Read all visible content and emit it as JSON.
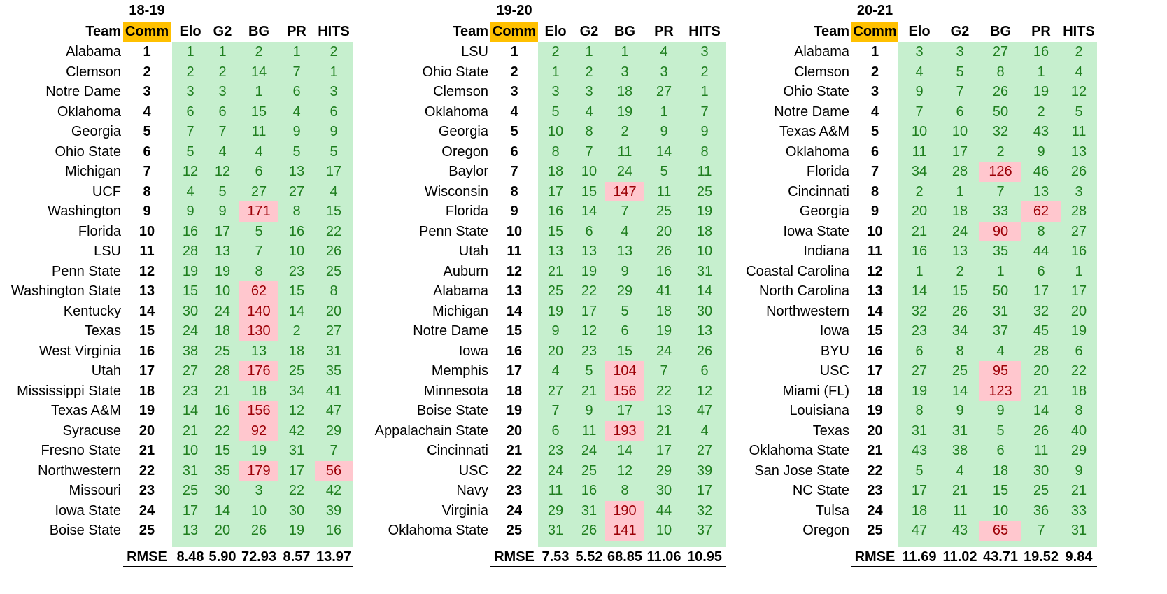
{
  "headers": {
    "team": "Team",
    "comm": "Comm",
    "elo": "Elo",
    "g2": "G2",
    "bg": "BG",
    "pr": "PR",
    "hits": "HITS",
    "rmse": "RMSE"
  },
  "colors": {
    "comm_header": "#ffc000",
    "green_fill": "#c6efce",
    "green_text": "#1e7e1e",
    "red_fill": "#ffc7ce",
    "red_text": "#9c0006"
  },
  "seasons": [
    {
      "label": "18-19",
      "rows": [
        {
          "team": "Alabama",
          "comm": "1",
          "elo": "1",
          "g2": "1",
          "bg": "2",
          "pr": "1",
          "hits": "2"
        },
        {
          "team": "Clemson",
          "comm": "2",
          "elo": "2",
          "g2": "2",
          "bg": "14",
          "pr": "7",
          "hits": "1"
        },
        {
          "team": "Notre Dame",
          "comm": "3",
          "elo": "3",
          "g2": "3",
          "bg": "1",
          "pr": "6",
          "hits": "3"
        },
        {
          "team": "Oklahoma",
          "comm": "4",
          "elo": "6",
          "g2": "6",
          "bg": "15",
          "pr": "4",
          "hits": "6"
        },
        {
          "team": "Georgia",
          "comm": "5",
          "elo": "7",
          "g2": "7",
          "bg": "11",
          "pr": "9",
          "hits": "9"
        },
        {
          "team": "Ohio State",
          "comm": "6",
          "elo": "5",
          "g2": "4",
          "bg": "4",
          "pr": "5",
          "hits": "5"
        },
        {
          "team": "Michigan",
          "comm": "7",
          "elo": "12",
          "g2": "12",
          "bg": "6",
          "pr": "13",
          "hits": "17"
        },
        {
          "team": "UCF",
          "comm": "8",
          "elo": "4",
          "g2": "5",
          "bg": "27",
          "pr": "27",
          "hits": "4"
        },
        {
          "team": "Washington",
          "comm": "9",
          "elo": "9",
          "g2": "9",
          "bg": "171",
          "pr": "8",
          "hits": "15",
          "red": [
            "bg"
          ]
        },
        {
          "team": "Florida",
          "comm": "10",
          "elo": "16",
          "g2": "17",
          "bg": "5",
          "pr": "16",
          "hits": "22"
        },
        {
          "team": "LSU",
          "comm": "11",
          "elo": "28",
          "g2": "13",
          "bg": "7",
          "pr": "10",
          "hits": "26"
        },
        {
          "team": "Penn State",
          "comm": "12",
          "elo": "19",
          "g2": "19",
          "bg": "8",
          "pr": "23",
          "hits": "25"
        },
        {
          "team": "Washington State",
          "comm": "13",
          "elo": "15",
          "g2": "10",
          "bg": "62",
          "pr": "15",
          "hits": "8",
          "red": [
            "bg"
          ]
        },
        {
          "team": "Kentucky",
          "comm": "14",
          "elo": "30",
          "g2": "24",
          "bg": "140",
          "pr": "14",
          "hits": "20",
          "red": [
            "bg"
          ]
        },
        {
          "team": "Texas",
          "comm": "15",
          "elo": "24",
          "g2": "18",
          "bg": "130",
          "pr": "2",
          "hits": "27",
          "red": [
            "bg"
          ]
        },
        {
          "team": "West Virginia",
          "comm": "16",
          "elo": "38",
          "g2": "25",
          "bg": "13",
          "pr": "18",
          "hits": "31"
        },
        {
          "team": "Utah",
          "comm": "17",
          "elo": "27",
          "g2": "28",
          "bg": "176",
          "pr": "25",
          "hits": "35",
          "red": [
            "bg"
          ]
        },
        {
          "team": "Mississippi State",
          "comm": "18",
          "elo": "23",
          "g2": "21",
          "bg": "18",
          "pr": "34",
          "hits": "41"
        },
        {
          "team": "Texas A&M",
          "comm": "19",
          "elo": "14",
          "g2": "16",
          "bg": "156",
          "pr": "12",
          "hits": "47",
          "red": [
            "bg"
          ]
        },
        {
          "team": "Syracuse",
          "comm": "20",
          "elo": "21",
          "g2": "22",
          "bg": "92",
          "pr": "42",
          "hits": "29",
          "red": [
            "bg"
          ]
        },
        {
          "team": "Fresno State",
          "comm": "21",
          "elo": "10",
          "g2": "15",
          "bg": "19",
          "pr": "31",
          "hits": "7"
        },
        {
          "team": "Northwestern",
          "comm": "22",
          "elo": "31",
          "g2": "35",
          "bg": "179",
          "pr": "17",
          "hits": "56",
          "red": [
            "bg",
            "hits"
          ]
        },
        {
          "team": "Missouri",
          "comm": "23",
          "elo": "25",
          "g2": "30",
          "bg": "3",
          "pr": "22",
          "hits": "42"
        },
        {
          "team": "Iowa State",
          "comm": "24",
          "elo": "17",
          "g2": "14",
          "bg": "10",
          "pr": "30",
          "hits": "39"
        },
        {
          "team": "Boise State",
          "comm": "25",
          "elo": "13",
          "g2": "20",
          "bg": "26",
          "pr": "19",
          "hits": "16"
        }
      ],
      "rmse": {
        "elo": "8.48",
        "g2": "5.90",
        "bg": "72.93",
        "pr": "8.57",
        "hits": "13.97"
      }
    },
    {
      "label": "19-20",
      "rows": [
        {
          "team": "LSU",
          "comm": "1",
          "elo": "2",
          "g2": "1",
          "bg": "1",
          "pr": "4",
          "hits": "3"
        },
        {
          "team": "Ohio State",
          "comm": "2",
          "elo": "1",
          "g2": "2",
          "bg": "3",
          "pr": "3",
          "hits": "2"
        },
        {
          "team": "Clemson",
          "comm": "3",
          "elo": "3",
          "g2": "3",
          "bg": "18",
          "pr": "27",
          "hits": "1"
        },
        {
          "team": "Oklahoma",
          "comm": "4",
          "elo": "5",
          "g2": "4",
          "bg": "19",
          "pr": "1",
          "hits": "7"
        },
        {
          "team": "Georgia",
          "comm": "5",
          "elo": "10",
          "g2": "8",
          "bg": "2",
          "pr": "9",
          "hits": "9"
        },
        {
          "team": "Oregon",
          "comm": "6",
          "elo": "8",
          "g2": "7",
          "bg": "11",
          "pr": "14",
          "hits": "8"
        },
        {
          "team": "Baylor",
          "comm": "7",
          "elo": "18",
          "g2": "10",
          "bg": "24",
          "pr": "5",
          "hits": "11"
        },
        {
          "team": "Wisconsin",
          "comm": "8",
          "elo": "17",
          "g2": "15",
          "bg": "147",
          "pr": "11",
          "hits": "25",
          "red": [
            "bg"
          ]
        },
        {
          "team": "Florida",
          "comm": "9",
          "elo": "16",
          "g2": "14",
          "bg": "7",
          "pr": "25",
          "hits": "19"
        },
        {
          "team": "Penn State",
          "comm": "10",
          "elo": "15",
          "g2": "6",
          "bg": "4",
          "pr": "20",
          "hits": "18"
        },
        {
          "team": "Utah",
          "comm": "11",
          "elo": "13",
          "g2": "13",
          "bg": "13",
          "pr": "26",
          "hits": "10"
        },
        {
          "team": "Auburn",
          "comm": "12",
          "elo": "21",
          "g2": "19",
          "bg": "9",
          "pr": "16",
          "hits": "31"
        },
        {
          "team": "Alabama",
          "comm": "13",
          "elo": "25",
          "g2": "22",
          "bg": "29",
          "pr": "41",
          "hits": "14"
        },
        {
          "team": "Michigan",
          "comm": "14",
          "elo": "19",
          "g2": "17",
          "bg": "5",
          "pr": "18",
          "hits": "30"
        },
        {
          "team": "Notre Dame",
          "comm": "15",
          "elo": "9",
          "g2": "12",
          "bg": "6",
          "pr": "19",
          "hits": "13"
        },
        {
          "team": "Iowa",
          "comm": "16",
          "elo": "20",
          "g2": "23",
          "bg": "15",
          "pr": "24",
          "hits": "26"
        },
        {
          "team": "Memphis",
          "comm": "17",
          "elo": "4",
          "g2": "5",
          "bg": "104",
          "pr": "7",
          "hits": "6",
          "red": [
            "bg"
          ]
        },
        {
          "team": "Minnesota",
          "comm": "18",
          "elo": "27",
          "g2": "21",
          "bg": "156",
          "pr": "22",
          "hits": "12",
          "red": [
            "bg"
          ]
        },
        {
          "team": "Boise State",
          "comm": "19",
          "elo": "7",
          "g2": "9",
          "bg": "17",
          "pr": "13",
          "hits": "47"
        },
        {
          "team": "Appalachain State",
          "comm": "20",
          "elo": "6",
          "g2": "11",
          "bg": "193",
          "pr": "21",
          "hits": "4",
          "red": [
            "bg"
          ]
        },
        {
          "team": "Cincinnati",
          "comm": "21",
          "elo": "23",
          "g2": "24",
          "bg": "14",
          "pr": "17",
          "hits": "27"
        },
        {
          "team": "USC",
          "comm": "22",
          "elo": "24",
          "g2": "25",
          "bg": "12",
          "pr": "29",
          "hits": "39"
        },
        {
          "team": "Navy",
          "comm": "23",
          "elo": "11",
          "g2": "16",
          "bg": "8",
          "pr": "30",
          "hits": "17"
        },
        {
          "team": "Virginia",
          "comm": "24",
          "elo": "29",
          "g2": "31",
          "bg": "190",
          "pr": "44",
          "hits": "32",
          "red": [
            "bg"
          ]
        },
        {
          "team": "Oklahoma State",
          "comm": "25",
          "elo": "31",
          "g2": "26",
          "bg": "141",
          "pr": "10",
          "hits": "37",
          "red": [
            "bg"
          ]
        }
      ],
      "rmse": {
        "elo": "7.53",
        "g2": "5.52",
        "bg": "68.85",
        "pr": "11.06",
        "hits": "10.95"
      }
    },
    {
      "label": "20-21",
      "rows": [
        {
          "team": "Alabama",
          "comm": "1",
          "elo": "3",
          "g2": "3",
          "bg": "27",
          "pr": "16",
          "hits": "2"
        },
        {
          "team": "Clemson",
          "comm": "2",
          "elo": "4",
          "g2": "5",
          "bg": "8",
          "pr": "1",
          "hits": "4"
        },
        {
          "team": "Ohio State",
          "comm": "3",
          "elo": "9",
          "g2": "7",
          "bg": "26",
          "pr": "19",
          "hits": "12"
        },
        {
          "team": "Notre Dame",
          "comm": "4",
          "elo": "7",
          "g2": "6",
          "bg": "50",
          "pr": "2",
          "hits": "5"
        },
        {
          "team": "Texas A&M",
          "comm": "5",
          "elo": "10",
          "g2": "10",
          "bg": "32",
          "pr": "43",
          "hits": "11"
        },
        {
          "team": "Oklahoma",
          "comm": "6",
          "elo": "11",
          "g2": "17",
          "bg": "2",
          "pr": "9",
          "hits": "13"
        },
        {
          "team": "Florida",
          "comm": "7",
          "elo": "34",
          "g2": "28",
          "bg": "126",
          "pr": "46",
          "hits": "26",
          "red": [
            "bg"
          ]
        },
        {
          "team": "Cincinnati",
          "comm": "8",
          "elo": "2",
          "g2": "1",
          "bg": "7",
          "pr": "13",
          "hits": "3"
        },
        {
          "team": "Georgia",
          "comm": "9",
          "elo": "20",
          "g2": "18",
          "bg": "33",
          "pr": "62",
          "hits": "28",
          "red": [
            "pr"
          ]
        },
        {
          "team": "Iowa State",
          "comm": "10",
          "elo": "21",
          "g2": "24",
          "bg": "90",
          "pr": "8",
          "hits": "27",
          "red": [
            "bg"
          ]
        },
        {
          "team": "Indiana",
          "comm": "11",
          "elo": "16",
          "g2": "13",
          "bg": "35",
          "pr": "44",
          "hits": "16"
        },
        {
          "team": "Coastal Carolina",
          "comm": "12",
          "elo": "1",
          "g2": "2",
          "bg": "1",
          "pr": "6",
          "hits": "1"
        },
        {
          "team": "North Carolina",
          "comm": "13",
          "elo": "14",
          "g2": "15",
          "bg": "50",
          "pr": "17",
          "hits": "17"
        },
        {
          "team": "Northwestern",
          "comm": "14",
          "elo": "32",
          "g2": "26",
          "bg": "31",
          "pr": "32",
          "hits": "20"
        },
        {
          "team": "Iowa",
          "comm": "15",
          "elo": "23",
          "g2": "34",
          "bg": "37",
          "pr": "45",
          "hits": "19"
        },
        {
          "team": "BYU",
          "comm": "16",
          "elo": "6",
          "g2": "8",
          "bg": "4",
          "pr": "28",
          "hits": "6"
        },
        {
          "team": "USC",
          "comm": "17",
          "elo": "27",
          "g2": "25",
          "bg": "95",
          "pr": "20",
          "hits": "22",
          "red": [
            "bg"
          ]
        },
        {
          "team": "Miami (FL)",
          "comm": "18",
          "elo": "19",
          "g2": "14",
          "bg": "123",
          "pr": "21",
          "hits": "18",
          "red": [
            "bg"
          ]
        },
        {
          "team": "Louisiana",
          "comm": "19",
          "elo": "8",
          "g2": "9",
          "bg": "9",
          "pr": "14",
          "hits": "8"
        },
        {
          "team": "Texas",
          "comm": "20",
          "elo": "31",
          "g2": "31",
          "bg": "5",
          "pr": "26",
          "hits": "40"
        },
        {
          "team": "Oklahoma State",
          "comm": "21",
          "elo": "43",
          "g2": "38",
          "bg": "6",
          "pr": "11",
          "hits": "29"
        },
        {
          "team": "San Jose State",
          "comm": "22",
          "elo": "5",
          "g2": "4",
          "bg": "18",
          "pr": "30",
          "hits": "9"
        },
        {
          "team": "NC State",
          "comm": "23",
          "elo": "17",
          "g2": "21",
          "bg": "15",
          "pr": "25",
          "hits": "21"
        },
        {
          "team": "Tulsa",
          "comm": "24",
          "elo": "18",
          "g2": "11",
          "bg": "10",
          "pr": "36",
          "hits": "33"
        },
        {
          "team": "Oregon",
          "comm": "25",
          "elo": "47",
          "g2": "43",
          "bg": "65",
          "pr": "7",
          "hits": "31",
          "red": [
            "bg"
          ]
        }
      ],
      "rmse": {
        "elo": "11.69",
        "g2": "11.02",
        "bg": "43.71",
        "pr": "19.52",
        "hits": "9.84"
      }
    }
  ]
}
